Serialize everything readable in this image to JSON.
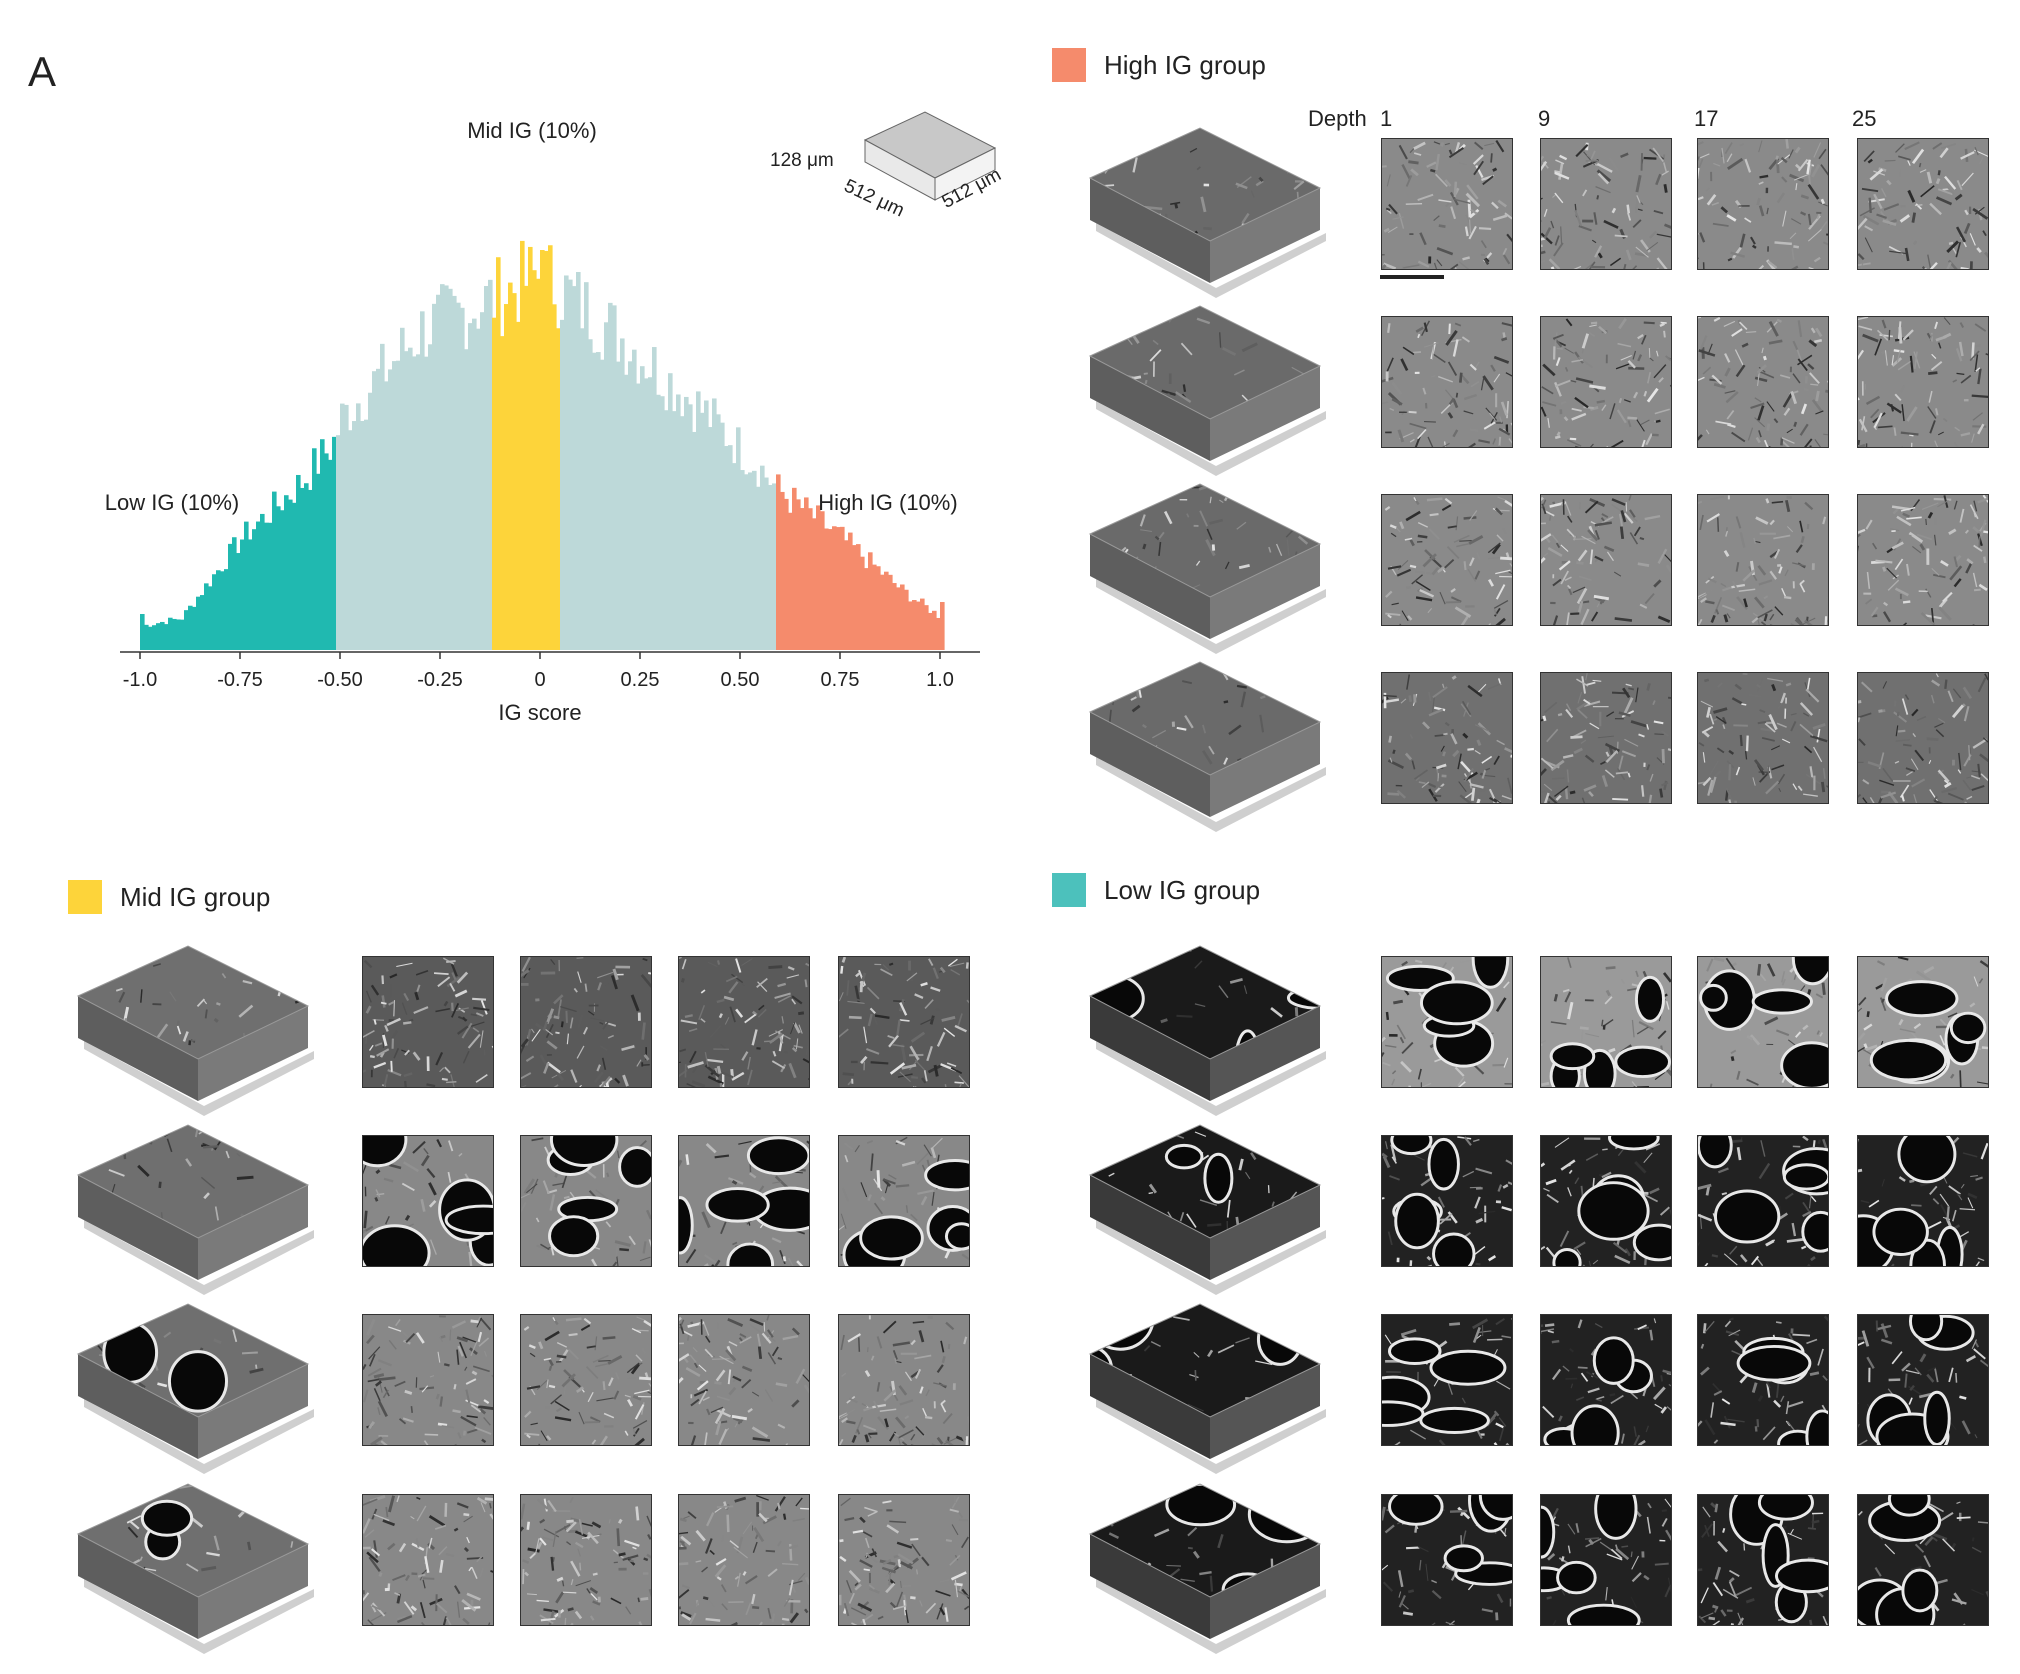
{
  "panel_letter": "A",
  "chart_data": {
    "type": "bar",
    "title": "",
    "xlabel": "IG score",
    "ylabel": "",
    "xlim": [
      -1.05,
      1.1
    ],
    "x_ticks": [
      "-1.0",
      "-0.75",
      "-0.50",
      "-0.25",
      "0",
      "0.25",
      "0.50",
      "0.75",
      "1.0"
    ],
    "x_tick_values": [
      -1.0,
      -0.75,
      -0.5,
      -0.25,
      0,
      0.25,
      0.5,
      0.75,
      1.0
    ],
    "annotations": [
      "Low IG (10%)",
      "Mid IG (10%)",
      "High IG (10%)"
    ],
    "bin_width": 0.01,
    "low_threshold": -0.51,
    "mid_range": [
      -0.12,
      0.045
    ],
    "high_threshold": 0.59,
    "colors": {
      "low": "#20b9b0",
      "mid": "#fdd43a",
      "high": "#f58b6c",
      "rest": "#bdd9d9"
    },
    "series": [
      {
        "name": "Low IG (10%)",
        "x": [
          -1.0,
          -0.75,
          -0.52
        ],
        "values": [
          0.09,
          0.32,
          0.52
        ]
      },
      {
        "name": "Mid IG (10%)",
        "x": [
          -0.12,
          -0.04,
          0.0,
          0.045
        ],
        "values": [
          0.87,
          0.92,
          1.0,
          0.92
        ]
      },
      {
        "name": "High IG (10%)",
        "x": [
          0.59,
          0.75,
          1.0
        ],
        "values": [
          0.4,
          0.28,
          0.12
        ]
      }
    ]
  },
  "volume_diagram": {
    "thickness_label": "128 μm",
    "width_label": "512 μm",
    "depth_label": "512 μm"
  },
  "groups": {
    "high": {
      "label": "High IG group",
      "color": "#f58b6c"
    },
    "mid": {
      "label": "Mid IG group",
      "color": "#fdd43a"
    },
    "low": {
      "label": "Low IG group",
      "color": "#4cc1bc"
    }
  },
  "depth_header": {
    "title": "Depth",
    "values": [
      "1",
      "9",
      "17",
      "25"
    ]
  }
}
